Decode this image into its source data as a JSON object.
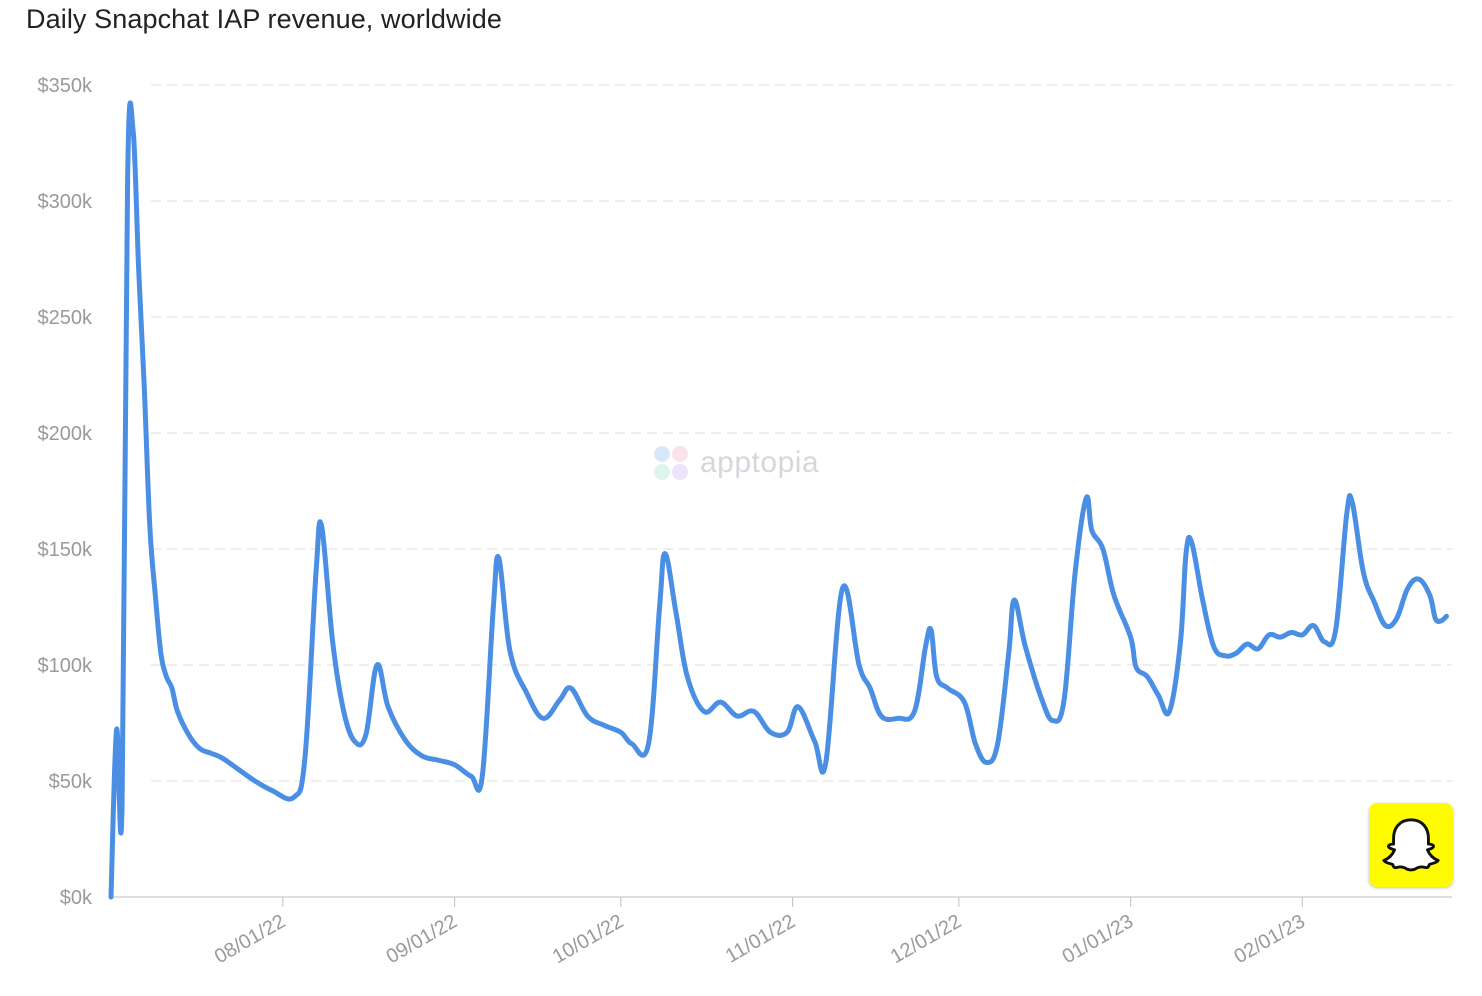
{
  "title": "Daily Snapchat IAP revenue, worldwide",
  "watermark": {
    "text": "apptopia",
    "icon": "apptopia-logo-icon"
  },
  "brand_logo": {
    "icon": "snapchat-ghost-icon",
    "color": "#fffc00"
  },
  "colors": {
    "series": "#4a8fe3",
    "grid": "#e3e3e3",
    "tick": "#9a9a9a"
  },
  "chart_data": {
    "type": "line",
    "title": "Daily Snapchat IAP revenue, worldwide",
    "xlabel": "",
    "ylabel": "",
    "ylim": [
      0,
      350000
    ],
    "xlim": [
      "2022-07-01",
      "2023-02-28"
    ],
    "grid": true,
    "legend": "none",
    "y_ticks": [
      {
        "value": 0,
        "label": "$0k"
      },
      {
        "value": 50000,
        "label": "$50k"
      },
      {
        "value": 100000,
        "label": "$100k"
      },
      {
        "value": 150000,
        "label": "$150k"
      },
      {
        "value": 200000,
        "label": "$200k"
      },
      {
        "value": 250000,
        "label": "$250k"
      },
      {
        "value": 300000,
        "label": "$300k"
      },
      {
        "value": 350000,
        "label": "$350k"
      }
    ],
    "x_ticks": [
      {
        "date": "2022-08-01",
        "label": "08/01/22"
      },
      {
        "date": "2022-09-01",
        "label": "09/01/22"
      },
      {
        "date": "2022-10-01",
        "label": "10/01/22"
      },
      {
        "date": "2022-11-01",
        "label": "11/01/22"
      },
      {
        "date": "2022-12-01",
        "label": "12/01/22"
      },
      {
        "date": "2023-01-01",
        "label": "01/01/23"
      },
      {
        "date": "2023-02-01",
        "label": "02/01/23"
      }
    ],
    "series": [
      {
        "points": [
          [
            "2022-07-01",
            0
          ],
          [
            "2022-07-02",
            72000
          ],
          [
            "2022-07-03",
            40000
          ],
          [
            "2022-07-04",
            310000
          ],
          [
            "2022-07-05",
            330000
          ],
          [
            "2022-07-06",
            270000
          ],
          [
            "2022-07-07",
            220000
          ],
          [
            "2022-07-08",
            160000
          ],
          [
            "2022-07-09",
            130000
          ],
          [
            "2022-07-10",
            105000
          ],
          [
            "2022-07-11",
            95000
          ],
          [
            "2022-07-12",
            90000
          ],
          [
            "2022-07-13",
            80000
          ],
          [
            "2022-07-15",
            70000
          ],
          [
            "2022-07-17",
            64000
          ],
          [
            "2022-07-19",
            62000
          ],
          [
            "2022-07-21",
            60000
          ],
          [
            "2022-07-24",
            55000
          ],
          [
            "2022-07-27",
            50000
          ],
          [
            "2022-07-30",
            46000
          ],
          [
            "2022-08-03",
            43000
          ],
          [
            "2022-08-05",
            60000
          ],
          [
            "2022-08-07",
            140000
          ],
          [
            "2022-08-08",
            160000
          ],
          [
            "2022-08-10",
            110000
          ],
          [
            "2022-08-12",
            80000
          ],
          [
            "2022-08-14",
            67000
          ],
          [
            "2022-08-16",
            70000
          ],
          [
            "2022-08-18",
            100000
          ],
          [
            "2022-08-20",
            82000
          ],
          [
            "2022-08-23",
            68000
          ],
          [
            "2022-08-26",
            61000
          ],
          [
            "2022-08-29",
            59000
          ],
          [
            "2022-09-01",
            57000
          ],
          [
            "2022-09-04",
            52000
          ],
          [
            "2022-09-06",
            52000
          ],
          [
            "2022-09-08",
            125000
          ],
          [
            "2022-09-09",
            146000
          ],
          [
            "2022-09-11",
            106000
          ],
          [
            "2022-09-14",
            88000
          ],
          [
            "2022-09-17",
            77000
          ],
          [
            "2022-09-20",
            85000
          ],
          [
            "2022-09-22",
            90000
          ],
          [
            "2022-09-25",
            78000
          ],
          [
            "2022-09-28",
            74000
          ],
          [
            "2022-10-01",
            71000
          ],
          [
            "2022-10-03",
            66000
          ],
          [
            "2022-10-06",
            66000
          ],
          [
            "2022-10-08",
            125000
          ],
          [
            "2022-10-09",
            148000
          ],
          [
            "2022-10-11",
            122000
          ],
          [
            "2022-10-13",
            95000
          ],
          [
            "2022-10-16",
            80000
          ],
          [
            "2022-10-19",
            84000
          ],
          [
            "2022-10-22",
            78000
          ],
          [
            "2022-10-25",
            80000
          ],
          [
            "2022-10-28",
            71000
          ],
          [
            "2022-10-31",
            71000
          ],
          [
            "2022-11-02",
            82000
          ],
          [
            "2022-11-05",
            67000
          ],
          [
            "2022-11-07",
            58000
          ],
          [
            "2022-11-10",
            133000
          ],
          [
            "2022-11-13",
            100000
          ],
          [
            "2022-11-15",
            90000
          ],
          [
            "2022-11-17",
            78000
          ],
          [
            "2022-11-20",
            77000
          ],
          [
            "2022-11-23",
            80000
          ],
          [
            "2022-11-25",
            108000
          ],
          [
            "2022-11-26",
            115000
          ],
          [
            "2022-11-27",
            95000
          ],
          [
            "2022-11-29",
            90000
          ],
          [
            "2022-12-02",
            84000
          ],
          [
            "2022-12-04",
            66000
          ],
          [
            "2022-12-06",
            58000
          ],
          [
            "2022-12-08",
            66000
          ],
          [
            "2022-12-10",
            105000
          ],
          [
            "2022-12-11",
            128000
          ],
          [
            "2022-12-13",
            108000
          ],
          [
            "2022-12-16",
            85000
          ],
          [
            "2022-12-18",
            76000
          ],
          [
            "2022-12-20",
            85000
          ],
          [
            "2022-12-22",
            140000
          ],
          [
            "2022-12-24",
            172000
          ],
          [
            "2022-12-25",
            158000
          ],
          [
            "2022-12-27",
            150000
          ],
          [
            "2022-12-29",
            130000
          ],
          [
            "2023-01-01",
            112000
          ],
          [
            "2023-01-02",
            99000
          ],
          [
            "2023-01-04",
            95000
          ],
          [
            "2023-01-06",
            87000
          ],
          [
            "2023-01-08",
            80000
          ],
          [
            "2023-01-10",
            110000
          ],
          [
            "2023-01-11",
            148000
          ],
          [
            "2023-01-12",
            153000
          ],
          [
            "2023-01-14",
            128000
          ],
          [
            "2023-01-16",
            108000
          ],
          [
            "2023-01-18",
            104000
          ],
          [
            "2023-01-20",
            105000
          ],
          [
            "2023-01-22",
            109000
          ],
          [
            "2023-01-24",
            107000
          ],
          [
            "2023-01-26",
            113000
          ],
          [
            "2023-01-28",
            112000
          ],
          [
            "2023-01-30",
            114000
          ],
          [
            "2023-02-01",
            113000
          ],
          [
            "2023-02-03",
            117000
          ],
          [
            "2023-02-05",
            110000
          ],
          [
            "2023-02-07",
            115000
          ],
          [
            "2023-02-09",
            165000
          ],
          [
            "2023-02-10",
            170000
          ],
          [
            "2023-02-12",
            140000
          ],
          [
            "2023-02-14",
            127000
          ],
          [
            "2023-02-16",
            117000
          ],
          [
            "2023-02-18",
            120000
          ],
          [
            "2023-02-20",
            133000
          ],
          [
            "2023-02-22",
            137000
          ],
          [
            "2023-02-24",
            130000
          ],
          [
            "2023-02-25",
            120000
          ],
          [
            "2023-02-26",
            119000
          ],
          [
            "2023-02-27",
            121000
          ]
        ]
      }
    ]
  }
}
